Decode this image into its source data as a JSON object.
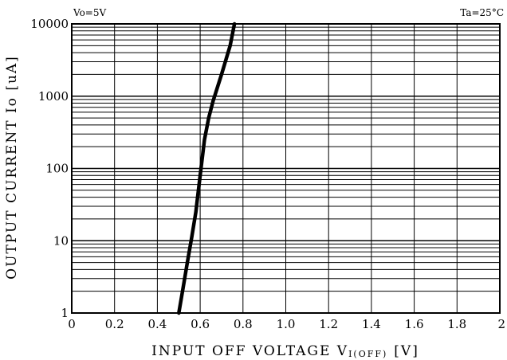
{
  "chart_data": {
    "type": "line",
    "note_left": "Vo=5V",
    "note_right": "Ta=25°C",
    "xlabel": "INPUT OFF VOLTAGE V",
    "xlabel_sub": "I(OFF)",
    "xlabel_unit": "[V]",
    "ylabel": "OUTPUT CURRENT Io [uA]",
    "xlim": [
      0,
      2
    ],
    "ylim": [
      1,
      10000
    ],
    "y_scale": "log",
    "grid": true,
    "x_ticks": [
      "0",
      "0.2",
      "0.4",
      "0.6",
      "0.8",
      "1.0",
      "1.2",
      "1.4",
      "1.6",
      "1.8",
      "2"
    ],
    "y_ticks": [
      "1",
      "10",
      "100",
      "1000",
      "10000"
    ],
    "series": [
      {
        "x": [
          0.5,
          0.52,
          0.54,
          0.56,
          0.58,
          0.59,
          0.6,
          0.62,
          0.64,
          0.66,
          0.7,
          0.74,
          0.76
        ],
        "values": [
          1,
          2.2,
          5,
          11,
          25,
          45,
          80,
          250,
          500,
          850,
          2000,
          5000,
          10000
        ]
      }
    ]
  }
}
